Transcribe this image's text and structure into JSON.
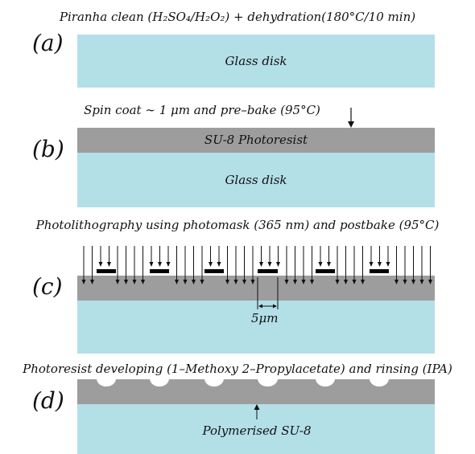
{
  "steps": {
    "a": {
      "label": "(a)",
      "caption": "Piranha clean (H₂SO₄/H₂O₂) + dehydration(180°C/10 min)",
      "glass": "Glass disk"
    },
    "b": {
      "label": "(b)",
      "caption": "Spin coat ∼ 1 μm and pre–bake (95°C)",
      "resist": "SU-8 Photoresist",
      "glass": "Glass disk"
    },
    "c": {
      "label": "(c)",
      "caption": "Photolithography using photomask (365 nm) and postbake (95°C)",
      "dimension": "5μm"
    },
    "d": {
      "label": "(d)",
      "caption": "Photoresist developing (1–Methoxy 2–Propylacetate) and rinsing (IPA)",
      "annotation": "Polymerised SU-8"
    }
  },
  "colors": {
    "glass": "#b3dfe7",
    "resist": "#9d9d9d",
    "mask": "#000000"
  }
}
